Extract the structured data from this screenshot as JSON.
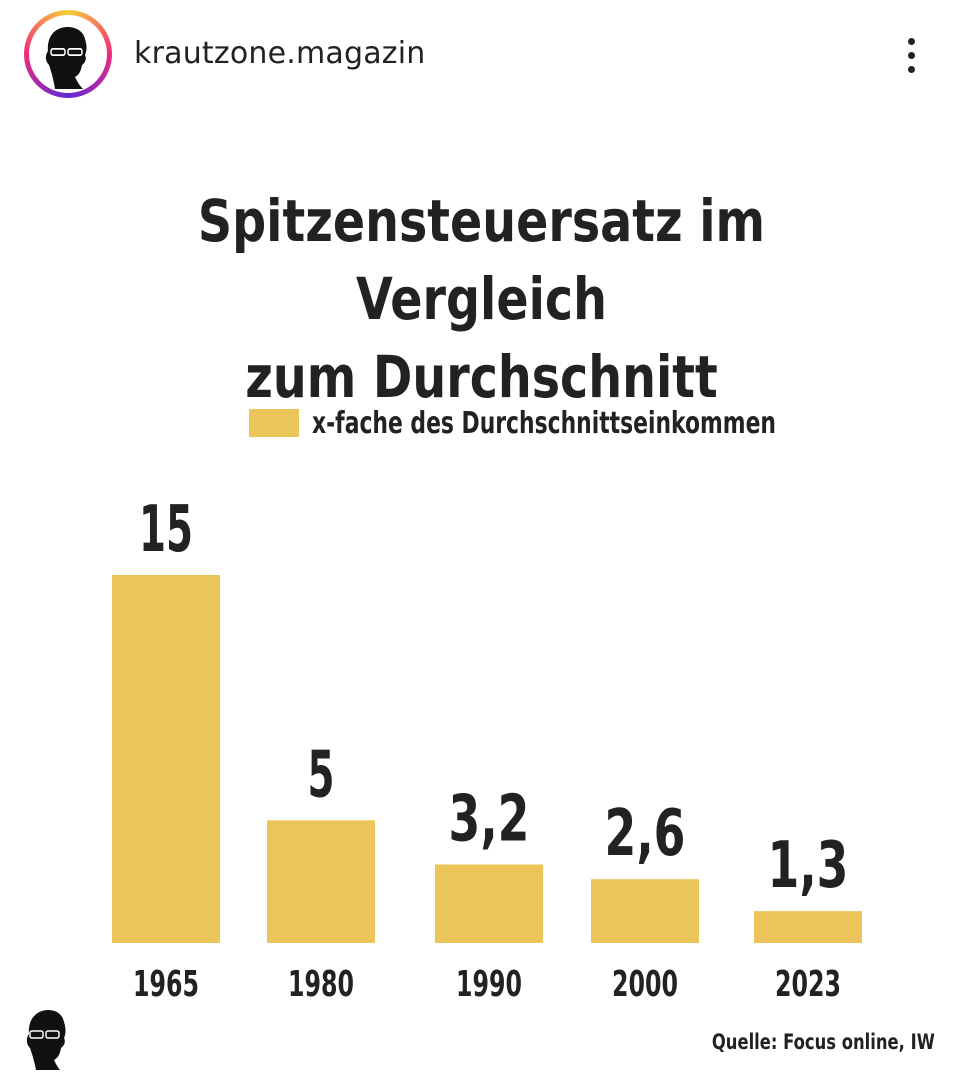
{
  "header": {
    "username": "krautzone.magazin",
    "more_icon": "more-vertical-icon",
    "avatar_icon": "silhouette-sunglasses-icon"
  },
  "chart_data": {
    "type": "bar",
    "title_lines": [
      "Spitzensteuersatz im Vergleich",
      "zum Durchschnitt"
    ],
    "legend": "x-fache des Durchschnittseinkommen",
    "categories": [
      "1965",
      "1980",
      "1990",
      "2000",
      "2023"
    ],
    "values": [
      15,
      5,
      3.2,
      2.6,
      1.3
    ],
    "value_labels": [
      "15",
      "5",
      "3,2",
      "2,6",
      "1,3"
    ],
    "xlabel": "",
    "ylabel": "",
    "ylim": [
      0,
      15
    ],
    "grid": false,
    "legend_position": "top-center",
    "bar_color": "#ebc55a",
    "text_color": "#222222"
  },
  "footer": {
    "source": "Quelle: Focus online, IW",
    "logo_icon": "silhouette-sunglasses-icon"
  }
}
